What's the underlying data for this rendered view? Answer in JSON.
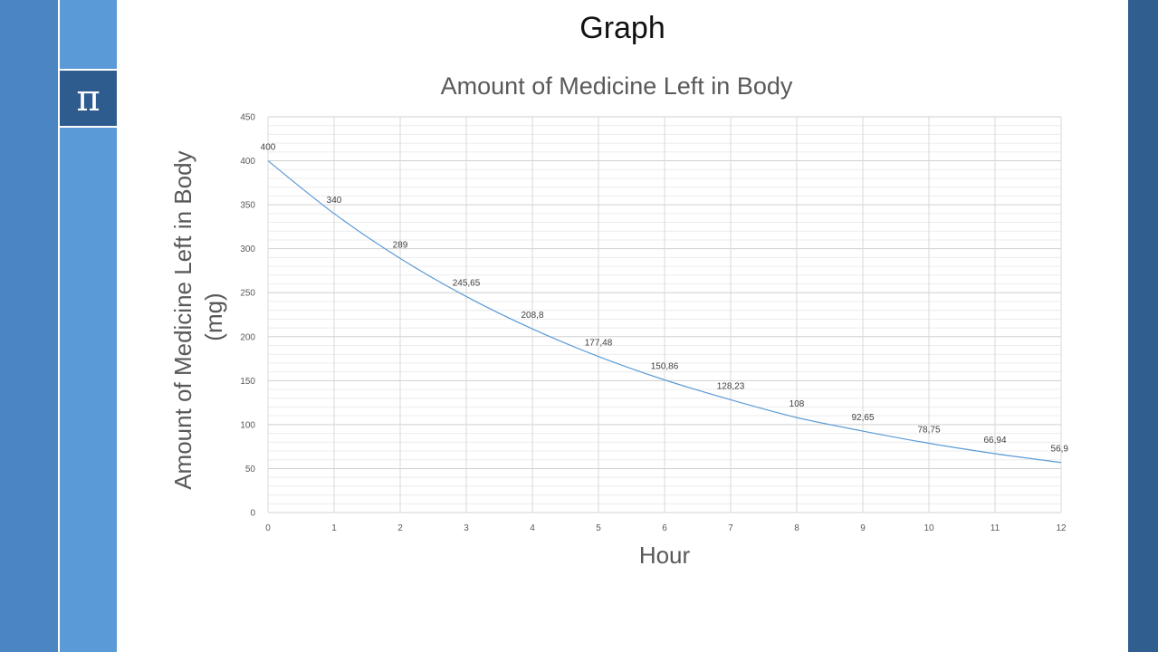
{
  "slide": {
    "title": "Graph",
    "icon": "pi-icon",
    "icon_glyph": "π"
  },
  "colors": {
    "sidebar_left": "#4b86c2",
    "sidebar_inner": "#5a9ad6",
    "pi_box": "#2e5c8f",
    "sidebar_right": "#2f5e8f",
    "line": "#5b9bd5"
  },
  "chart_data": {
    "type": "line",
    "title": "Amount of Medicine Left in Body",
    "xlabel": "Hour",
    "ylabel": "Amount of Medicine Left  in Body (mg)",
    "ylabel_lines": [
      "Amount of Medicine Left  in Body",
      "(mg)"
    ],
    "x": [
      0,
      1,
      2,
      3,
      4,
      5,
      6,
      7,
      8,
      9,
      10,
      11,
      12
    ],
    "series": [
      {
        "values": [
          400,
          340,
          289,
          245.65,
          208.8,
          177.48,
          150.86,
          128.23,
          108,
          92.65,
          78.75,
          66.94,
          56.9
        ],
        "labels": [
          "400",
          "340",
          "289",
          "245,65",
          "208,8",
          "177,48",
          "150,86",
          "128,23",
          "108",
          "92,65",
          "78,75",
          "66,94",
          "56,9"
        ]
      }
    ],
    "xlim": [
      0,
      12
    ],
    "ylim": [
      0,
      450
    ],
    "yticks": [
      0,
      50,
      100,
      150,
      200,
      250,
      300,
      350,
      400,
      450
    ],
    "xticks": [
      0,
      1,
      2,
      3,
      4,
      5,
      6,
      7,
      8,
      9,
      10,
      11,
      12
    ],
    "grid": true,
    "minor_grid": true,
    "legend": "none"
  }
}
